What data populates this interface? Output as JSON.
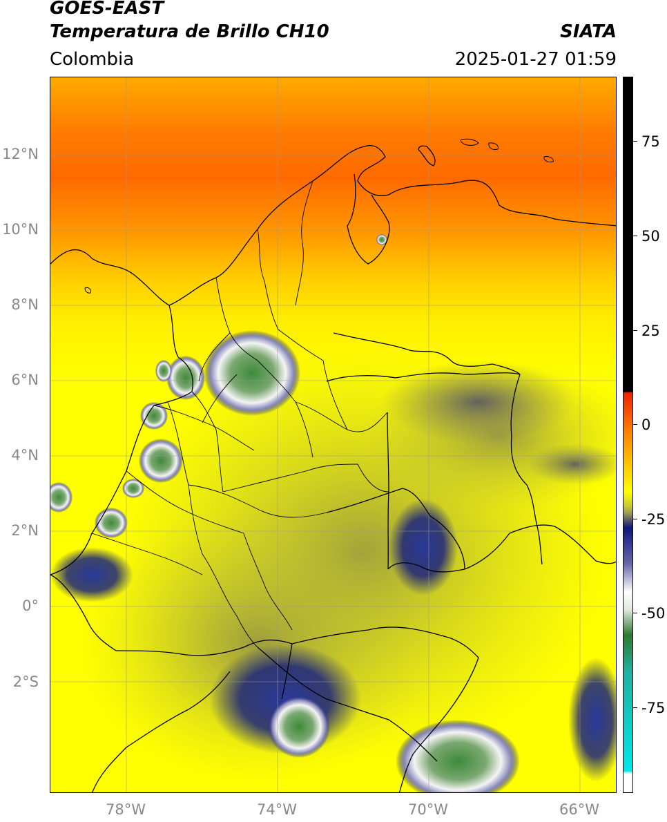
{
  "header": {
    "title_line1": "GOES-EAST",
    "title_line2": "Temperatura de Brillo CH10",
    "organization": "SIATA",
    "region": "Colombia",
    "datetime": "2025-01-27 01:59"
  },
  "axes": {
    "lat_labels": [
      "12°N",
      "10°N",
      "8°N",
      "6°N",
      "4°N",
      "2°N",
      "0°",
      "2°S"
    ],
    "lon_labels": [
      "78°W",
      "74°W",
      "70°W",
      "66°W"
    ]
  },
  "colorbar": {
    "tick_labels": [
      "75",
      "50",
      "25",
      "0",
      "-25",
      "-50",
      "-75"
    ],
    "colors": {
      "black": "#000000",
      "red": "#ee2200",
      "orange": "#ff8800",
      "yellow": "#ffff00",
      "olive": "#a8a83a",
      "gray": "#555566",
      "navy": "#101880",
      "white": "#ffffff",
      "green": "#2e7a2e",
      "teal": "#20b0a0",
      "cyan": "#00e8e8"
    }
  }
}
